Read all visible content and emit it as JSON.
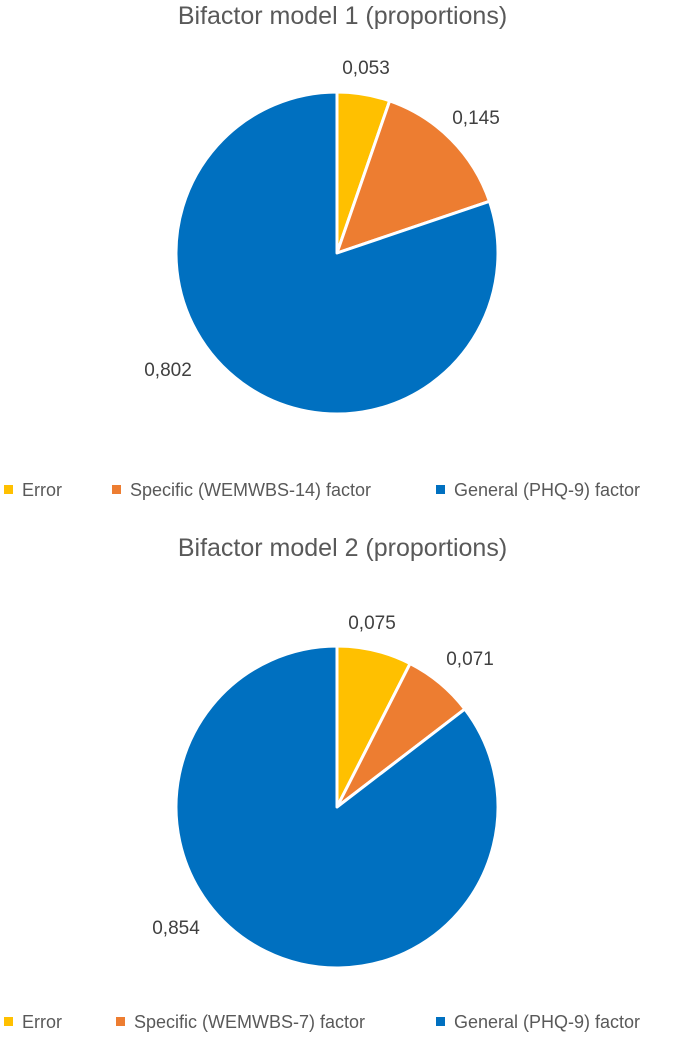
{
  "colors": {
    "error": "#FFC000",
    "specific": "#ED7D31",
    "general": "#0070C0"
  },
  "chart_data": [
    {
      "type": "pie",
      "title": "Bifactor model 1 (proportions)",
      "categories": [
        "Error",
        "Specific (WEMWBS-14) factor",
        "General (PHQ-9) factor"
      ],
      "values": [
        0.053,
        0.145,
        0.802
      ],
      "data_labels": [
        "0,053",
        "0,145",
        "0,802"
      ],
      "colors": [
        "#FFC000",
        "#ED7D31",
        "#0070C0"
      ],
      "legend_position": "bottom"
    },
    {
      "type": "pie",
      "title": "Bifactor model 2 (proportions)",
      "categories": [
        "Error",
        "Specific (WEMWBS-7) factor",
        "General (PHQ-9) factor"
      ],
      "values": [
        0.075,
        0.071,
        0.854
      ],
      "data_labels": [
        "0,075",
        "0,071",
        "0,854"
      ],
      "colors": [
        "#FFC000",
        "#ED7D31",
        "#0070C0"
      ],
      "legend_position": "bottom"
    }
  ]
}
